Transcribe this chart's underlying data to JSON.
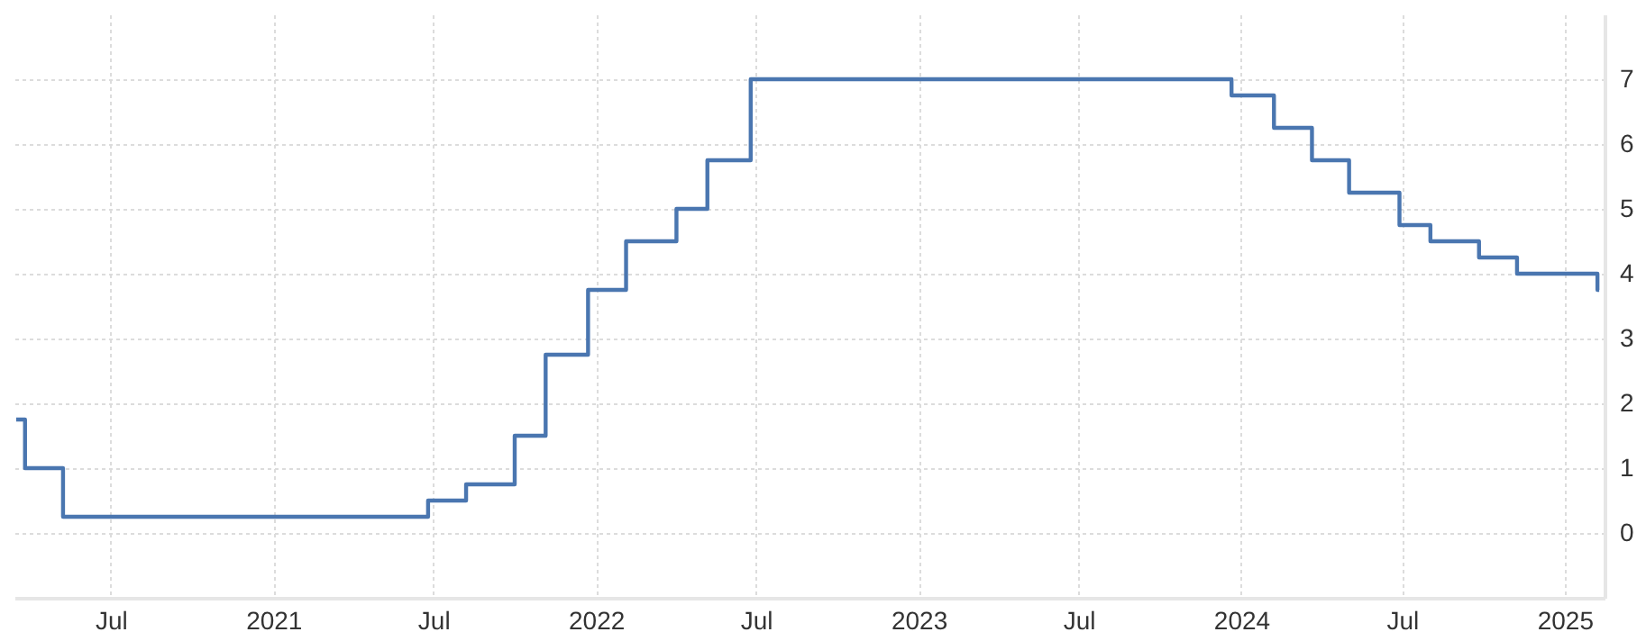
{
  "chart_data": {
    "type": "step",
    "x": [
      "2020-03-16",
      "2020-03-26",
      "2020-05-08",
      "2021-06-25",
      "2021-08-07",
      "2021-10-01",
      "2021-11-05",
      "2021-12-23",
      "2022-02-04",
      "2022-04-02",
      "2022-05-07",
      "2022-06-25",
      "2023-12-21",
      "2024-02-07",
      "2024-03-21",
      "2024-05-02",
      "2024-06-28",
      "2024-08-02",
      "2024-09-26",
      "2024-11-08",
      "2025-02-07",
      "2025-02-09"
    ],
    "series": [
      {
        "color": "#4a76b0",
        "values": [
          1.75,
          1.0,
          0.25,
          0.5,
          0.75,
          1.5,
          2.75,
          3.75,
          4.5,
          5.0,
          5.75,
          7.0,
          6.75,
          6.25,
          5.75,
          5.25,
          4.75,
          4.5,
          4.25,
          4.0,
          3.75,
          3.75
        ]
      }
    ],
    "xlim": [
      "2020-03-14",
      "2025-02-15"
    ],
    "xticks": [
      {
        "value": "2020-07-01",
        "label": "Jul"
      },
      {
        "value": "2021-01-01",
        "label": "2021"
      },
      {
        "value": "2021-07-01",
        "label": "Jul"
      },
      {
        "value": "2022-01-01",
        "label": "2022"
      },
      {
        "value": "2022-07-01",
        "label": "Jul"
      },
      {
        "value": "2023-01-01",
        "label": "2023"
      },
      {
        "value": "2023-07-01",
        "label": "Jul"
      },
      {
        "value": "2024-01-01",
        "label": "2024"
      },
      {
        "value": "2024-07-01",
        "label": "Jul"
      },
      {
        "value": "2025-01-01",
        "label": "2025"
      }
    ],
    "ylim": [
      -1,
      8
    ],
    "yticks": [
      0,
      1,
      2,
      3,
      4,
      5,
      6,
      7
    ],
    "grid": true,
    "marker": "none",
    "line_style": "solid"
  }
}
